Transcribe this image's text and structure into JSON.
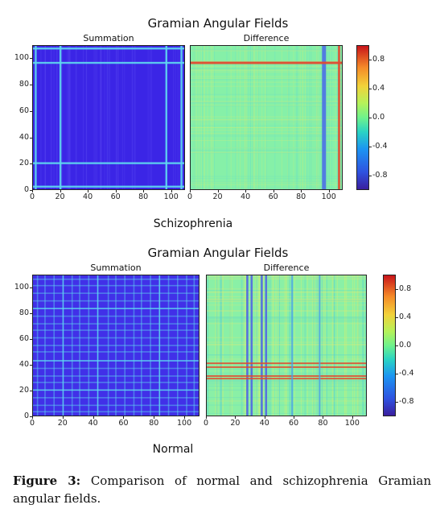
{
  "figure": {
    "top_title": "Gramian Angular Fields",
    "bottom_title": "Gramian Angular Fields",
    "top_group_label": "Schizophrenia",
    "bottom_group_label": "Normal",
    "caption_label": "Figure 3:",
    "caption_text": " Comparison of normal and schizophrenia Gramian angular fields."
  },
  "panels": {
    "summation_title": "Summation",
    "difference_title": "Difference"
  },
  "axes": {
    "y_ticks": [
      "100",
      "80",
      "60",
      "40",
      "20",
      "0"
    ],
    "x_ticks": [
      "0",
      "20",
      "40",
      "60",
      "80",
      "100"
    ],
    "colorbar_ticks": [
      "0.8",
      "0.4",
      "0.0",
      "-0.4",
      "-0.8"
    ]
  },
  "colors": {
    "summation_base": "#3a2fe0",
    "difference_base": "#7ef0a0",
    "highlight_cyan": "#5fd8f0",
    "highlight_red": "#e04a30"
  },
  "chart_data": [
    {
      "type": "heatmap",
      "title": "Summation",
      "group": "Schizophrenia",
      "xlim": [
        0,
        110
      ],
      "ylim": [
        0,
        110
      ],
      "colorbar_range": [
        -1,
        1
      ]
    },
    {
      "type": "heatmap",
      "title": "Difference",
      "group": "Schizophrenia",
      "xlim": [
        0,
        110
      ],
      "ylim": [
        0,
        110
      ],
      "colorbar_range": [
        -1,
        1
      ]
    },
    {
      "type": "heatmap",
      "title": "Summation",
      "group": "Normal",
      "xlim": [
        0,
        110
      ],
      "ylim": [
        0,
        110
      ],
      "colorbar_range": [
        -1,
        1
      ]
    },
    {
      "type": "heatmap",
      "title": "Difference",
      "group": "Normal",
      "xlim": [
        0,
        110
      ],
      "ylim": [
        0,
        110
      ],
      "colorbar_range": [
        -1,
        1
      ]
    }
  ]
}
